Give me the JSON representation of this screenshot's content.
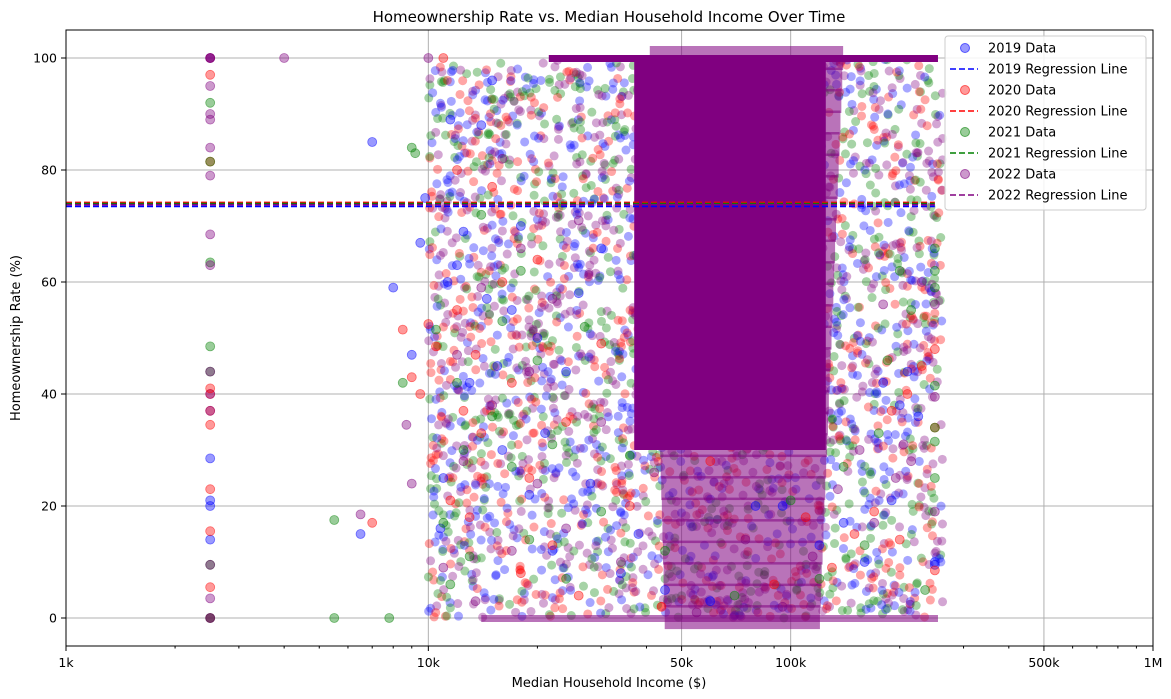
{
  "chart_data": {
    "type": "scatter",
    "title": "Homeownership Rate vs. Median Household Income Over Time",
    "xlabel": "Median Household Income ($)",
    "ylabel": "Homeownership Rate (%)",
    "x_scale": "log",
    "xlim": [
      1000,
      1000000
    ],
    "ylim": [
      -5,
      105
    ],
    "grid": true,
    "legend_position": "top-right",
    "x_ticks": [
      {
        "value": 1000,
        "label": "1k"
      },
      {
        "value": 10000,
        "label": "10k"
      },
      {
        "value": 50000,
        "label": "50k"
      },
      {
        "value": 100000,
        "label": "100k"
      },
      {
        "value": 500000,
        "label": "500k"
      },
      {
        "value": 1000000,
        "label": "1M"
      }
    ],
    "y_ticks": [
      {
        "value": 0,
        "label": "0"
      },
      {
        "value": 20,
        "label": "20"
      },
      {
        "value": 40,
        "label": "40"
      },
      {
        "value": 60,
        "label": "60"
      },
      {
        "value": 80,
        "label": "80"
      },
      {
        "value": 100,
        "label": "100"
      }
    ],
    "series": [
      {
        "name": "2019 Data",
        "year": "2019",
        "color": "#0000ff",
        "regression_label": "2019 Regression Line",
        "regression_y": 73.5,
        "points": [
          [
            2500,
            100
          ],
          [
            2500,
            100
          ],
          [
            2500,
            40
          ],
          [
            2500,
            28.5
          ],
          [
            2500,
            21
          ],
          [
            2500,
            20
          ],
          [
            2500,
            14
          ],
          [
            2500,
            0
          ],
          [
            6500,
            15
          ],
          [
            7000,
            85
          ],
          [
            8000,
            59
          ],
          [
            9000,
            47
          ],
          [
            9500,
            67
          ],
          [
            9800,
            75
          ],
          [
            10800,
            16
          ],
          [
            11000,
            25
          ],
          [
            11300,
            60
          ],
          [
            11500,
            89
          ],
          [
            12000,
            63
          ],
          [
            12500,
            69
          ],
          [
            13000,
            42
          ],
          [
            14000,
            88
          ],
          [
            14500,
            57
          ],
          [
            15000,
            96
          ],
          [
            15500,
            45
          ],
          [
            16000,
            30
          ],
          [
            17000,
            55
          ],
          [
            18000,
            70
          ],
          [
            19000,
            22
          ],
          [
            20000,
            50
          ],
          [
            21000,
            33
          ],
          [
            22000,
            12
          ],
          [
            24000,
            44
          ],
          [
            26000,
            58
          ],
          [
            28000,
            24
          ],
          [
            30000,
            66
          ],
          [
            34000,
            8
          ],
          [
            38000,
            15
          ],
          [
            45000,
            5
          ],
          [
            60000,
            3
          ],
          [
            80000,
            20
          ],
          [
            95000,
            20
          ],
          [
            120000,
            13
          ],
          [
            140000,
            17
          ],
          [
            160000,
            10
          ],
          [
            180000,
            42
          ],
          [
            190000,
            21
          ],
          [
            200000,
            38
          ],
          [
            210000,
            44
          ],
          [
            225000,
            36
          ],
          [
            250000,
            10
          ],
          [
            250000,
            9.5
          ]
        ]
      },
      {
        "name": "2020 Data",
        "year": "2020",
        "color": "#ff0000",
        "regression_label": "2020 Regression Line",
        "regression_y": 74.2,
        "points": [
          [
            2500,
            100
          ],
          [
            2500,
            97
          ],
          [
            2500,
            81.5
          ],
          [
            2500,
            41
          ],
          [
            2500,
            40
          ],
          [
            2500,
            37
          ],
          [
            2500,
            34.5
          ],
          [
            2500,
            23
          ],
          [
            2500,
            15.5
          ],
          [
            2500,
            5.5
          ],
          [
            2500,
            0
          ],
          [
            7000,
            17
          ],
          [
            8500,
            51.5
          ],
          [
            9000,
            43
          ],
          [
            9500,
            40
          ],
          [
            10000,
            52.5
          ],
          [
            10500,
            48.5
          ],
          [
            11000,
            100
          ],
          [
            11500,
            21
          ],
          [
            12000,
            80
          ],
          [
            12000,
            55
          ],
          [
            12500,
            37
          ],
          [
            13000,
            18
          ],
          [
            13500,
            47
          ],
          [
            14000,
            33
          ],
          [
            15000,
            77
          ],
          [
            16000,
            60
          ],
          [
            17000,
            42
          ],
          [
            18000,
            8
          ],
          [
            19000,
            25
          ],
          [
            20000,
            64
          ],
          [
            22000,
            13
          ],
          [
            24000,
            35
          ],
          [
            26000,
            4
          ],
          [
            30000,
            49
          ],
          [
            36000,
            20
          ],
          [
            44000,
            2
          ],
          [
            60000,
            28
          ],
          [
            90000,
            6
          ],
          [
            110000,
            18
          ],
          [
            130000,
            9
          ],
          [
            150000,
            15
          ],
          [
            170000,
            19
          ],
          [
            190000,
            37
          ],
          [
            200000,
            14
          ],
          [
            210000,
            40
          ],
          [
            230000,
            45
          ],
          [
            250000,
            8.5
          ],
          [
            250000,
            34
          ],
          [
            250000,
            48
          ]
        ]
      },
      {
        "name": "2021 Data",
        "year": "2021",
        "color": "#008000",
        "regression_label": "2021 Regression Line",
        "regression_y": 74.0,
        "points": [
          [
            2500,
            92
          ],
          [
            2500,
            81.5
          ],
          [
            2500,
            63.5
          ],
          [
            2500,
            48.5
          ],
          [
            2500,
            44
          ],
          [
            2500,
            9.5
          ],
          [
            2500,
            0
          ],
          [
            5500,
            17.5
          ],
          [
            5500,
            0
          ],
          [
            7800,
            0
          ],
          [
            8500,
            42
          ],
          [
            9000,
            84
          ],
          [
            9200,
            83
          ],
          [
            10500,
            51.5
          ],
          [
            11000,
            17
          ],
          [
            11500,
            6
          ],
          [
            12000,
            42
          ],
          [
            12500,
            30
          ],
          [
            13000,
            11
          ],
          [
            14000,
            72
          ],
          [
            15000,
            36
          ],
          [
            16000,
            53
          ],
          [
            17000,
            27
          ],
          [
            18000,
            62
          ],
          [
            19000,
            14
          ],
          [
            20000,
            46
          ],
          [
            22000,
            31
          ],
          [
            24000,
            7
          ],
          [
            27000,
            52
          ],
          [
            30000,
            19
          ],
          [
            36000,
            29
          ],
          [
            45000,
            12
          ],
          [
            70000,
            4
          ],
          [
            100000,
            21
          ],
          [
            120000,
            7
          ],
          [
            140000,
            27
          ],
          [
            160000,
            13
          ],
          [
            175000,
            33
          ],
          [
            185000,
            46
          ],
          [
            200000,
            62
          ],
          [
            215000,
            55
          ],
          [
            235000,
            5
          ],
          [
            250000,
            66
          ],
          [
            250000,
            62
          ],
          [
            250000,
            59
          ],
          [
            250000,
            41.5
          ],
          [
            250000,
            34
          ],
          [
            250000,
            31.5
          ],
          [
            250000,
            25
          ]
        ]
      },
      {
        "name": "2022 Data",
        "year": "2022",
        "color": "#800080",
        "regression_label": "2022 Regression Line",
        "regression_y": 73.8,
        "points": [
          [
            2500,
            100
          ],
          [
            2500,
            95
          ],
          [
            2500,
            90
          ],
          [
            2500,
            89
          ],
          [
            2500,
            84
          ],
          [
            2500,
            79
          ],
          [
            2500,
            68.5
          ],
          [
            2500,
            63
          ],
          [
            2500,
            44
          ],
          [
            2500,
            37
          ],
          [
            2500,
            9.5
          ],
          [
            2500,
            3.5
          ],
          [
            2500,
            0
          ],
          [
            4000,
            100
          ],
          [
            6500,
            18.5
          ],
          [
            8700,
            34.5
          ],
          [
            9000,
            24
          ],
          [
            10000,
            100
          ],
          [
            11000,
            9
          ],
          [
            12000,
            47
          ],
          [
            12500,
            28
          ],
          [
            13500,
            3
          ],
          [
            14000,
            59
          ],
          [
            15000,
            38
          ],
          [
            16000,
            82
          ],
          [
            17000,
            12
          ],
          [
            18000,
            66
          ],
          [
            19000,
            44
          ],
          [
            20000,
            24
          ],
          [
            22000,
            57
          ],
          [
            24000,
            16
          ],
          [
            26000,
            71
          ],
          [
            30000,
            35
          ],
          [
            34000,
            10
          ],
          [
            42000,
            26
          ],
          [
            55000,
            1
          ],
          [
            75000,
            14
          ],
          [
            95000,
            2
          ],
          [
            115000,
            11
          ],
          [
            135000,
            23
          ],
          [
            155000,
            30
          ],
          [
            170000,
            17
          ],
          [
            180000,
            56
          ],
          [
            195000,
            25
          ],
          [
            205000,
            31
          ],
          [
            215000,
            28
          ],
          [
            230000,
            60
          ],
          [
            250000,
            19
          ],
          [
            250000,
            39.5
          ],
          [
            250000,
            56
          ]
        ]
      }
    ]
  }
}
